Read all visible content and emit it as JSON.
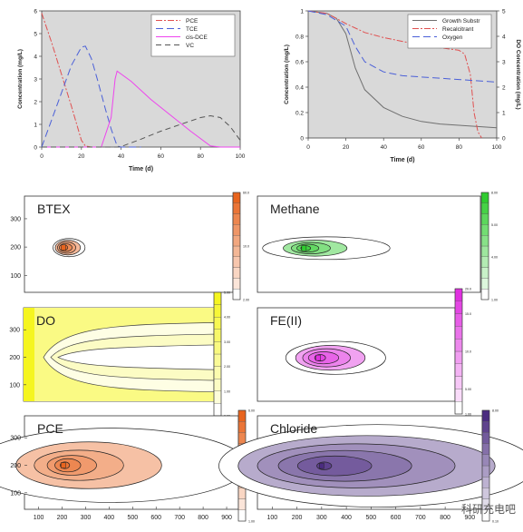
{
  "watermark": "科研充电吧",
  "chart_data": [
    {
      "type": "line",
      "xlabel": "Time (d)",
      "ylabel": "Concentration (mg/L)",
      "xlim": [
        0,
        100
      ],
      "ylim": [
        0,
        6
      ],
      "xticks": [
        0,
        20,
        40,
        60,
        80,
        100
      ],
      "yticks": [
        0,
        1,
        2,
        3,
        4,
        5,
        6
      ],
      "legend": "top-right",
      "series": [
        {
          "name": "PCE",
          "color": "#e05050",
          "dash": "7 2 2 2",
          "x": [
            0,
            5,
            10,
            15,
            20,
            22,
            25,
            30
          ],
          "y": [
            5.9,
            4.6,
            3.2,
            1.8,
            0.3,
            0.05,
            0,
            0
          ]
        },
        {
          "name": "TCE",
          "color": "#4a5fd8",
          "dash": "8 4",
          "x": [
            0,
            5,
            10,
            15,
            20,
            22,
            25,
            28,
            32,
            35,
            38,
            40,
            50
          ],
          "y": [
            0,
            1.2,
            2.4,
            3.6,
            4.4,
            4.45,
            3.9,
            3.0,
            1.7,
            0.8,
            0.05,
            0,
            0
          ]
        },
        {
          "name": "cis-DCE",
          "color": "#ee44ee",
          "dash": "",
          "x": [
            0,
            20,
            30,
            35,
            37,
            38,
            45,
            55,
            65,
            75,
            85,
            90,
            100
          ],
          "y": [
            0,
            0,
            0,
            1.3,
            3.0,
            3.35,
            2.9,
            2.1,
            1.4,
            0.7,
            0.05,
            0,
            0
          ]
        },
        {
          "name": "VC",
          "color": "#555555",
          "dash": "6 4",
          "x": [
            0,
            38,
            40,
            50,
            60,
            70,
            80,
            85,
            90,
            95,
            100
          ],
          "y": [
            0,
            0,
            0.02,
            0.35,
            0.7,
            1.0,
            1.3,
            1.38,
            1.3,
            0.9,
            0.3
          ]
        }
      ]
    },
    {
      "type": "line",
      "xlabel": "Time (d)",
      "ylabel": "Concentration (mg/L)",
      "y2label": "DO Concentration (mg/L)",
      "xlim": [
        0,
        100
      ],
      "ylim": [
        0,
        1
      ],
      "y2lim": [
        0,
        5
      ],
      "xticks": [
        0,
        20,
        40,
        60,
        80,
        100
      ],
      "yticks": [
        0,
        0.2,
        0.4,
        0.6,
        0.8,
        1
      ],
      "y2ticks": [
        0,
        1,
        2,
        3,
        4,
        5
      ],
      "legend": "top-right",
      "series": [
        {
          "name": "Growth Substr",
          "color": "#707070",
          "dash": "",
          "x": [
            0,
            10,
            15,
            20,
            25,
            30,
            40,
            50,
            60,
            70,
            80,
            90,
            100
          ],
          "y": [
            1.0,
            0.98,
            0.94,
            0.82,
            0.55,
            0.38,
            0.24,
            0.17,
            0.13,
            0.11,
            0.1,
            0.09,
            0.08
          ]
        },
        {
          "name": "Recalcitrant",
          "color": "#e05050",
          "dash": "7 2 2 2",
          "x": [
            0,
            10,
            20,
            30,
            40,
            50,
            60,
            70,
            80,
            83,
            86,
            88,
            90,
            92
          ],
          "y": [
            1.0,
            0.98,
            0.9,
            0.83,
            0.79,
            0.76,
            0.73,
            0.71,
            0.69,
            0.66,
            0.5,
            0.2,
            0.05,
            0.0
          ]
        },
        {
          "name": "Oxygen",
          "color": "#4a5fd8",
          "dash": "8 4",
          "x": [
            0,
            10,
            20,
            25,
            30,
            40,
            50,
            60,
            70,
            80,
            90,
            100
          ],
          "y": [
            1.0,
            0.97,
            0.88,
            0.72,
            0.6,
            0.52,
            0.49,
            0.48,
            0.47,
            0.46,
            0.45,
            0.44
          ]
        }
      ]
    },
    {
      "type": "contour",
      "title": "BTEX",
      "color": "#e8641e",
      "center": [
        210,
        198
      ],
      "contours": [
        [
          70,
          32
        ],
        [
          55,
          26
        ],
        [
          40,
          20
        ],
        [
          28,
          14
        ],
        [
          14,
          9
        ]
      ],
      "colorbar_ticks": [
        "2.00",
        "",
        "",
        "",
        "",
        "10.0",
        "",
        "",
        "",
        "",
        "60.0"
      ]
    },
    {
      "type": "contour",
      "title": "Methane",
      "color": "#2fcc2f",
      "center": [
        230,
        196
      ],
      "contours": [
        [
          260,
          40
        ],
        [
          130,
          28
        ],
        [
          80,
          20
        ],
        [
          45,
          14
        ],
        [
          20,
          9
        ]
      ],
      "colorbar_ticks": [
        "1.00",
        "",
        "",
        "",
        "4.00",
        "",
        "",
        "5.00",
        "",
        "",
        "8.00"
      ]
    },
    {
      "type": "contour",
      "title": "DO",
      "color": "#f5f520",
      "colorbar_ticks": [
        "0.00",
        "",
        "1.00",
        "",
        "2.00",
        "",
        "3.00",
        "",
        "4.00",
        "",
        "5.00"
      ]
    },
    {
      "type": "contour",
      "title": "FE(II)",
      "color": "#e030e0",
      "center": [
        320,
        198
      ],
      "contours": [
        [
          230,
          60
        ],
        [
          160,
          45
        ],
        [
          110,
          33
        ],
        [
          70,
          22
        ],
        [
          25,
          12
        ]
      ],
      "colorbar_ticks": [
        "1.00",
        "",
        "5.00",
        "",
        "",
        "10.0",
        "",
        "",
        "15.0",
        "",
        "20.0"
      ]
    },
    {
      "type": "contour",
      "title": "PCE",
      "color": "#e8641e",
      "center": [
        205,
        200
      ],
      "contours": [
        [
          580,
          135
        ],
        [
          310,
          85
        ],
        [
          190,
          55
        ],
        [
          105,
          36
        ],
        [
          55,
          24
        ],
        [
          20,
          12
        ]
      ],
      "colorbar_ticks": [
        "1.00",
        "",
        "",
        "",
        "",
        "",
        "",
        "",
        "",
        "",
        "6.00"
      ]
    },
    {
      "type": "contour",
      "title": "Chloride",
      "color": "#4b2c80",
      "center": [
        300,
        198
      ],
      "contours": [
        [
          640,
          150
        ],
        [
          520,
          110
        ],
        [
          400,
          80
        ],
        [
          270,
          56
        ],
        [
          150,
          36
        ],
        [
          30,
          14
        ]
      ],
      "colorbar_ticks": [
        "0.10",
        "",
        "",
        "",
        "",
        "",
        "",
        "",
        "",
        "",
        "8.00"
      ]
    }
  ],
  "contour_axes": {
    "yticks_top": [
      100,
      200,
      300
    ],
    "yticks_mid": [
      100,
      200,
      300
    ],
    "yticks_bottom": [
      100,
      200,
      300
    ],
    "xticks": [
      100,
      200,
      300,
      400,
      500,
      600,
      700,
      800,
      900
    ]
  }
}
